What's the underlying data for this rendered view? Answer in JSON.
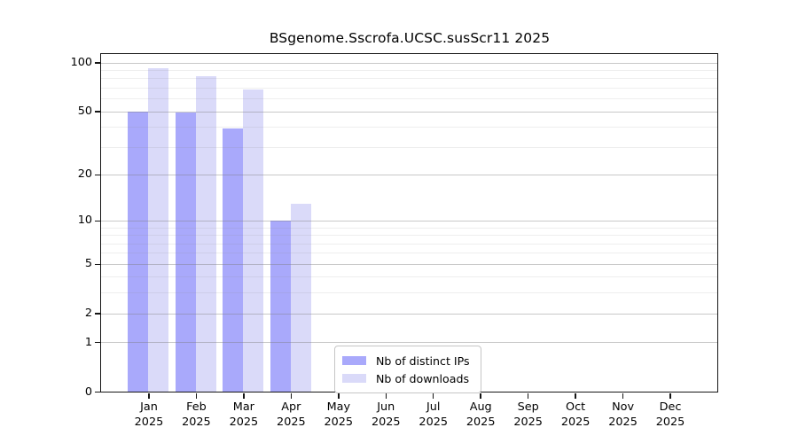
{
  "title": "BSgenome.Sscrofa.UCSC.susScr11 2025",
  "chart_data": {
    "type": "bar",
    "title": "BSgenome.Sscrofa.UCSC.susScr11 2025",
    "categories": [
      "Jan",
      "Feb",
      "Mar",
      "Apr",
      "May",
      "Jun",
      "Jul",
      "Aug",
      "Sep",
      "Oct",
      "Nov",
      "Dec"
    ],
    "category_year": "2025",
    "series": [
      {
        "name": "Nb of distinct IPs",
        "color": "#A9A9FB",
        "values": [
          50,
          49,
          39,
          10,
          0,
          0,
          0,
          0,
          0,
          0,
          0,
          0
        ]
      },
      {
        "name": "Nb of downloads",
        "color": "#DADAF9",
        "values": [
          92,
          82,
          68,
          13,
          0,
          0,
          0,
          0,
          0,
          0,
          0,
          0
        ]
      }
    ],
    "yscale": "log1p",
    "ylim": [
      0,
      100
    ],
    "y_ticks": [
      0,
      1,
      2,
      5,
      10,
      20,
      50,
      100
    ],
    "y_minor_gridlines": [
      3,
      4,
      6,
      7,
      8,
      9,
      30,
      40,
      60,
      70,
      80,
      90
    ],
    "grid": true,
    "legend_position": "inside-bottom-center"
  },
  "legend": {
    "items": [
      {
        "label": "Nb of distinct IPs"
      },
      {
        "label": "Nb of downloads"
      }
    ]
  }
}
